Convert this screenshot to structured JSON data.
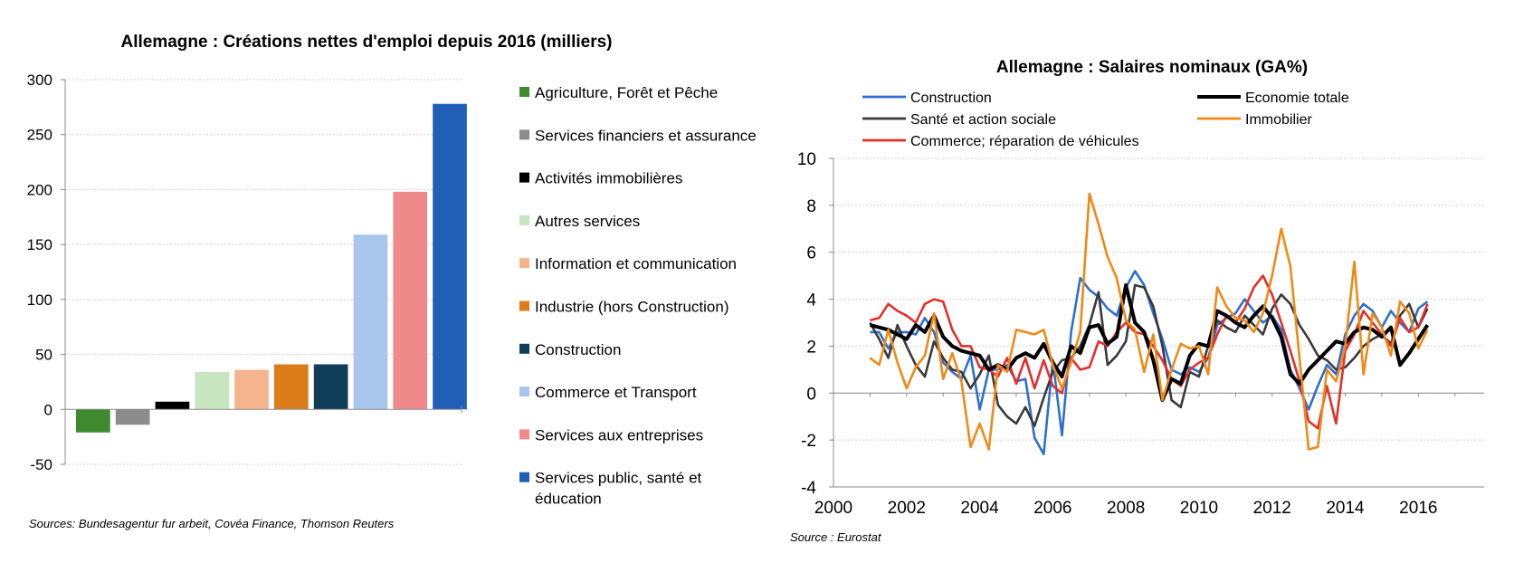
{
  "chart_data": [
    {
      "type": "bar",
      "title": "Allemagne : Créations nettes d'emploi depuis 2016 (milliers)",
      "xlabel": "",
      "ylabel": "",
      "ylim": [
        -50,
        300
      ],
      "yticks": [
        -50,
        0,
        50,
        100,
        150,
        200,
        250,
        300
      ],
      "grid": true,
      "legend_position": "right",
      "categories": [
        "Agriculture, Forêt et Pêche",
        "Services financiers et assurance",
        "Activités immobilières",
        "Autres services",
        "Information et communication",
        "Industrie (hors Construction)",
        "Construction",
        "Commerce et Transport",
        "Services aux entreprises",
        "Services public, santé et éducation"
      ],
      "values": [
        -21,
        -14,
        7,
        34,
        36,
        41,
        41,
        159,
        198,
        278
      ],
      "colors": [
        "#3f8a2e",
        "#8c8c8c",
        "#000000",
        "#c7e6bf",
        "#f6b48e",
        "#dd7c1b",
        "#103d58",
        "#a8c6ec",
        "#ee8a8a",
        "#1f5fb8"
      ],
      "source": "Sources: Bundesagentur fur arbeit, Covéa Finance, Thomson Reuters"
    },
    {
      "type": "line",
      "title": "Allemagne : Salaires nominaux (GA%)",
      "xlabel": "",
      "ylabel": "",
      "xlim": [
        2000,
        2017.8
      ],
      "ylim": [
        -4,
        10
      ],
      "xticks": [
        2000,
        2002,
        2004,
        2006,
        2008,
        2010,
        2012,
        2014,
        2016
      ],
      "yticks": [
        -4,
        -2,
        0,
        2,
        4,
        6,
        8,
        10
      ],
      "grid": true,
      "legend_position": "top",
      "x_start": 2001,
      "x_step": 0.25,
      "series": [
        {
          "name": "Construction",
          "color": "#2e6fd0",
          "values": [
            2.6,
            2.6,
            1.9,
            2.6,
            2.6,
            2.5,
            3.2,
            2.6,
            1.3,
            0.9,
            0.6,
            1.6,
            -0.7,
            1.0,
            1.0,
            1.2,
            0.5,
            0.6,
            -1.9,
            -2.6,
            1.4,
            -1.8,
            2.6,
            4.9,
            4.4,
            4.1,
            3.6,
            3.3,
            4.5,
            5.2,
            4.6,
            3.4,
            2.3,
            1.0,
            0.8,
            1.1,
            0.9,
            1.5,
            2.9,
            3.2,
            3.4,
            4.0,
            3.5,
            3.0,
            3.3,
            2.7,
            1.0,
            0.2,
            -0.7,
            0.3,
            1.2,
            0.8,
            2.5,
            3.3,
            3.8,
            3.5,
            2.8,
            3.5,
            3.0,
            2.6,
            3.6,
            3.9
          ]
        },
        {
          "name": "Santé et action sociale",
          "color": "#3a3a3a",
          "values": [
            3.0,
            2.3,
            1.5,
            2.9,
            2.0,
            1.2,
            0.7,
            2.2,
            1.5,
            1.0,
            0.9,
            0.2,
            0.8,
            1.6,
            -0.5,
            -1.0,
            -1.3,
            -0.6,
            -1.4,
            -0.2,
            0.9,
            1.4,
            1.5,
            2.0,
            2.9,
            4.3,
            1.2,
            1.6,
            2.2,
            4.6,
            4.5,
            3.7,
            2.0,
            -0.3,
            -0.6,
            0.9,
            0.7,
            2.0,
            3.1,
            2.8,
            2.6,
            3.3,
            2.9,
            2.5,
            3.6,
            4.2,
            3.8,
            2.9,
            2.3,
            1.6,
            1.4,
            1.0,
            1.1,
            1.5,
            2.0,
            2.3,
            2.5,
            2.1,
            3.3,
            3.8,
            2.8,
            3.6
          ]
        },
        {
          "name": "Commerce; réparation de véhicules",
          "color": "#e1302c",
          "values": [
            3.1,
            3.2,
            3.8,
            3.5,
            3.3,
            3.0,
            3.8,
            4.0,
            3.9,
            2.7,
            2.0,
            2.0,
            1.1,
            1.0,
            0.7,
            1.5,
            0.4,
            1.5,
            0.2,
            1.4,
            0.3,
            0.0,
            1.5,
            1.0,
            1.1,
            2.2,
            2.0,
            2.6,
            3.0,
            2.6,
            2.5,
            2.0,
            1.4,
            0.6,
            0.3,
            1.0,
            1.3,
            1.5,
            2.5,
            3.3,
            3.0,
            3.6,
            4.5,
            5.0,
            4.2,
            3.0,
            1.8,
            0.5,
            -1.2,
            -1.5,
            0.3,
            -1.3,
            1.8,
            2.5,
            3.5,
            3.0,
            2.5,
            2.0,
            3.2,
            2.6,
            2.8,
            3.8
          ]
        },
        {
          "name": "Economie totale",
          "color": "#000000",
          "values": [
            2.9,
            2.8,
            2.7,
            2.5,
            2.3,
            2.9,
            2.6,
            3.3,
            2.4,
            2.0,
            1.8,
            1.7,
            1.6,
            1.0,
            1.2,
            1.0,
            1.5,
            1.7,
            1.5,
            2.1,
            1.3,
            0.7,
            2.0,
            1.7,
            2.8,
            2.9,
            2.1,
            2.4,
            4.6,
            3.0,
            2.6,
            1.4,
            -0.3,
            0.6,
            0.4,
            1.6,
            2.1,
            2.0,
            3.5,
            3.3,
            3.0,
            2.8,
            3.3,
            3.7,
            3.2,
            2.4,
            0.8,
            0.4,
            1.0,
            1.4,
            1.8,
            2.2,
            2.1,
            2.6,
            2.8,
            2.7,
            2.4,
            2.8,
            1.2,
            1.7,
            2.3,
            2.9
          ]
        },
        {
          "name": "Immobilier",
          "color": "#ef8a17",
          "values": [
            1.5,
            1.2,
            2.7,
            1.3,
            0.2,
            1.1,
            1.6,
            3.4,
            0.6,
            1.7,
            0.5,
            -2.3,
            -1.3,
            -2.4,
            1.2,
            0.9,
            2.7,
            2.6,
            2.5,
            2.7,
            1.2,
            0.2,
            1.3,
            2.6,
            8.5,
            7.2,
            5.8,
            4.9,
            3.1,
            2.7,
            0.9,
            2.5,
            -0.3,
            1.0,
            2.1,
            1.9,
            2.0,
            0.8,
            4.5,
            3.7,
            3.2,
            3.1,
            2.6,
            3.4,
            5.0,
            7.0,
            5.4,
            1.5,
            -2.4,
            -2.3,
            1.0,
            0.5,
            2.0,
            5.6,
            0.8,
            3.4,
            2.8,
            1.6,
            3.9,
            3.4,
            1.9,
            2.7
          ]
        }
      ],
      "source": "Source : Eurostat"
    }
  ]
}
